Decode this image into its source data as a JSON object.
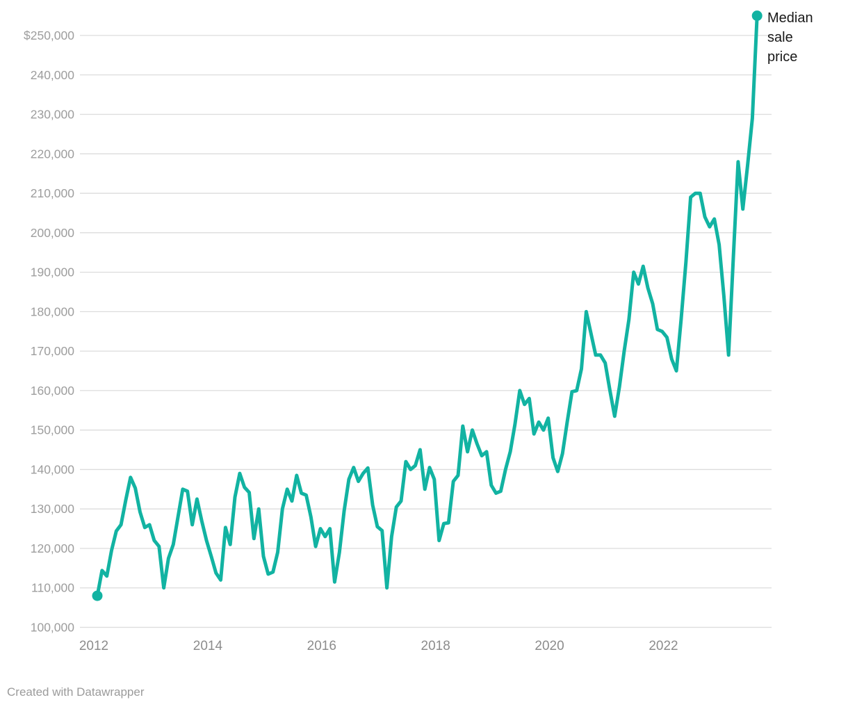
{
  "chart_data": {
    "type": "line",
    "title": "",
    "series": [
      {
        "name": "Median sale price",
        "frequency": "monthly",
        "start_month": "2012-01",
        "end_month": "2023-08",
        "values_usd": [
          108000,
          114400,
          113000,
          119500,
          124400,
          126000,
          132300,
          138000,
          135300,
          129200,
          125300,
          126000,
          122000,
          120500,
          110000,
          117500,
          121000,
          128000,
          135000,
          134500,
          126000,
          132500,
          127000,
          122000,
          118000,
          113800,
          112000,
          125300,
          121000,
          133000,
          139000,
          135500,
          134200,
          122500,
          130000,
          118000,
          113500,
          114000,
          119000,
          130000,
          135000,
          132000,
          138500,
          134000,
          133500,
          128000,
          120500,
          125000,
          123000,
          125000,
          111500,
          119000,
          129500,
          137500,
          140500,
          137000,
          139000,
          140400,
          131000,
          125500,
          124500,
          110000,
          123000,
          130500,
          132000,
          142000,
          140000,
          141000,
          145000,
          135000,
          140500,
          137500,
          122000,
          126300,
          126500,
          137000,
          138500,
          151000,
          144500,
          150000,
          146500,
          143500,
          144500,
          136000,
          134000,
          134500,
          140000,
          144500,
          151500,
          160000,
          156500,
          158000,
          149000,
          152000,
          150000,
          153000,
          143000,
          139500,
          144000,
          152000,
          159700,
          160000,
          165500,
          180000,
          174500,
          169000,
          169000,
          167000,
          160000,
          153500,
          161000,
          170000,
          178000,
          190000,
          187000,
          191500,
          186000,
          182000,
          175500,
          175000,
          173500,
          168000,
          165000,
          178000,
          192500,
          209000,
          210000,
          210000,
          204000,
          201500,
          203500,
          197000,
          184000,
          169000,
          194000,
          218000,
          206000,
          217000,
          229000,
          255000
        ]
      }
    ],
    "y_axis": {
      "grid": true,
      "range": [
        100000,
        255000
      ],
      "tick_values": [
        250000,
        240000,
        230000,
        220000,
        210000,
        200000,
        190000,
        180000,
        170000,
        160000,
        150000,
        140000,
        130000,
        120000,
        110000,
        100000
      ],
      "tick_labels": [
        "$250,000",
        "240,000",
        "230,000",
        "220,000",
        "210,000",
        "200,000",
        "190,000",
        "180,000",
        "170,000",
        "160,000",
        "150,000",
        "140,000",
        "130,000",
        "120,000",
        "110,000",
        "100,000"
      ]
    },
    "x_axis": {
      "tick_years": [
        2012,
        2014,
        2016,
        2018,
        2020,
        2022
      ],
      "tick_labels": [
        "2012",
        "2014",
        "2016",
        "2018",
        "2020",
        "2022"
      ]
    },
    "annotation": {
      "text": "Median sale price",
      "wrapped_text": "Median\nsale\nprice"
    },
    "colors": {
      "line": "#12b3a2",
      "grid": "#dcdcdc",
      "y_tick_text": "#9d9d9d",
      "x_tick_text": "#8c8c8c",
      "annotation_text": "#191919"
    },
    "markers": {
      "first_point": 108000,
      "last_point": 255000
    },
    "legend_position": "top-right-annotation"
  },
  "footer": {
    "credit": "Created with Datawrapper"
  }
}
